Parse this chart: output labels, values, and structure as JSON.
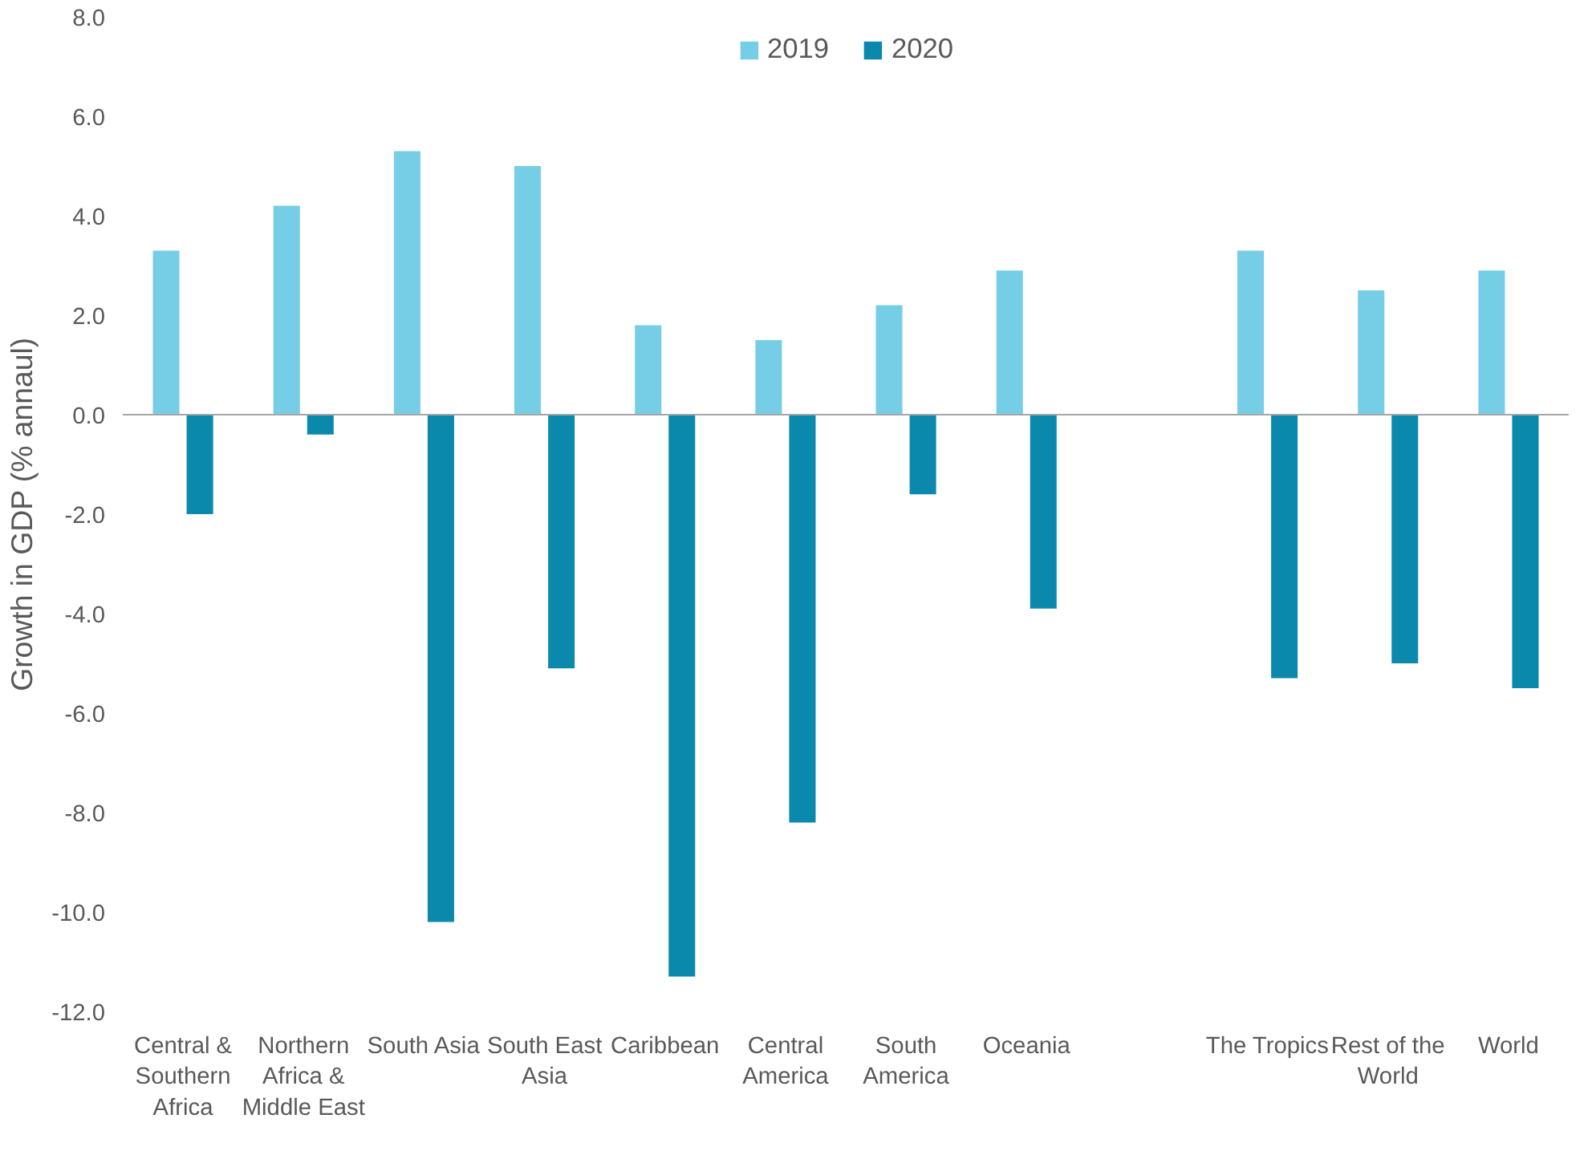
{
  "chart_data": {
    "type": "bar",
    "ylabel": "Growth in GDP (% annaul)",
    "categories": [
      "Central & Southern Africa",
      "Northern Africa & Middle East",
      "South Asia",
      "South East Asia",
      "Caribbean",
      "Central America",
      "South America",
      "Oceania",
      null,
      "The Tropics",
      "Rest of the World",
      "World"
    ],
    "series": [
      {
        "name": "2019",
        "color": "#76cde6",
        "values": [
          3.3,
          4.2,
          5.3,
          5.0,
          1.8,
          1.5,
          2.2,
          2.9,
          null,
          3.3,
          2.5,
          2.9
        ]
      },
      {
        "name": "2020",
        "color": "#0a89ad",
        "values": [
          -2.0,
          -0.4,
          -10.2,
          -5.1,
          -11.3,
          -8.2,
          -1.6,
          -3.9,
          null,
          -5.3,
          -5.0,
          -5.5
        ]
      }
    ],
    "ylim": [
      -12,
      8
    ],
    "yticks": [
      {
        "value": -12,
        "label": "-12.0"
      },
      {
        "value": -10,
        "label": "-10.0"
      },
      {
        "value": -8,
        "label": "-8.0"
      },
      {
        "value": -6,
        "label": "-6.0"
      },
      {
        "value": -4,
        "label": "-4.0"
      },
      {
        "value": -2,
        "label": "-2.0"
      },
      {
        "value": 0,
        "label": "0.0"
      },
      {
        "value": 2,
        "label": "2.0"
      },
      {
        "value": 4,
        "label": "4.0"
      },
      {
        "value": 6,
        "label": "6.0"
      },
      {
        "value": 8,
        "label": "8.0"
      }
    ],
    "legend": "top"
  }
}
